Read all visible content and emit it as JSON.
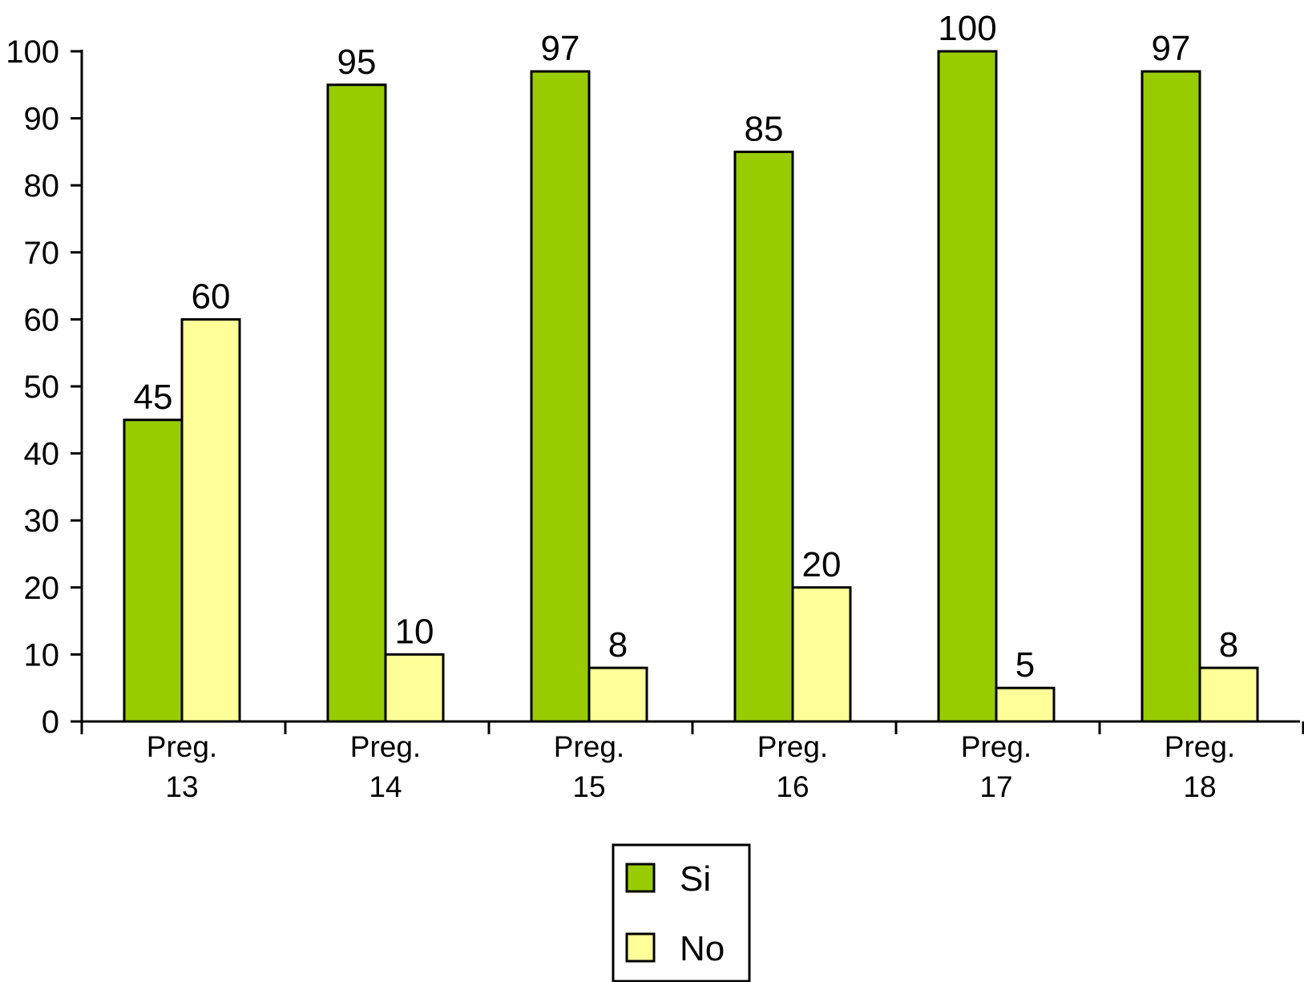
{
  "chart_data": {
    "type": "bar",
    "title": "",
    "xlabel": "",
    "ylabel": "",
    "categories": [
      [
        "Preg.",
        "13"
      ],
      [
        "Preg.",
        "14"
      ],
      [
        "Preg.",
        "15"
      ],
      [
        "Preg.",
        "16"
      ],
      [
        "Preg.",
        "17"
      ],
      [
        "Preg.",
        "18"
      ]
    ],
    "series": [
      {
        "name": "Si",
        "color": "#99cc00",
        "values": [
          45,
          95,
          97,
          85,
          100,
          97
        ]
      },
      {
        "name": "No",
        "color": "#ffff99",
        "values": [
          60,
          10,
          8,
          20,
          5,
          8
        ]
      }
    ],
    "ylim": [
      0,
      100
    ],
    "yticks": [
      0,
      10,
      20,
      30,
      40,
      50,
      60,
      70,
      80,
      90,
      100
    ],
    "data_labels": true,
    "grid": false,
    "legend": {
      "position": "bottom-center",
      "entries": [
        "Si",
        "No"
      ]
    }
  }
}
